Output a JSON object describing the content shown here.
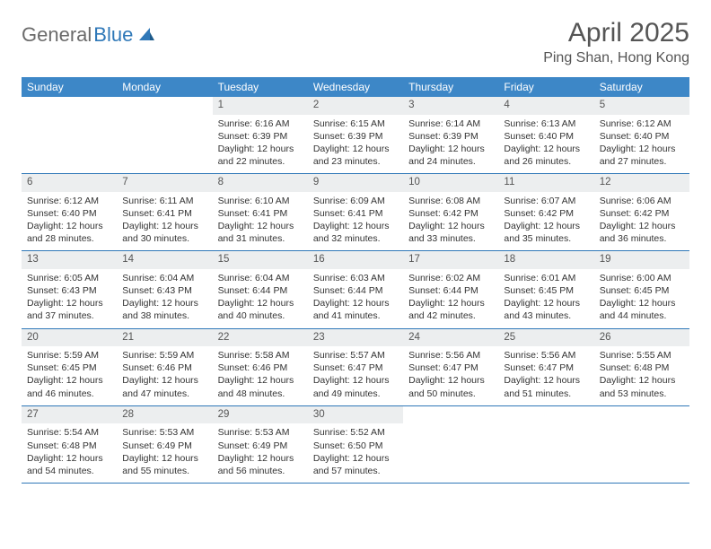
{
  "logo": {
    "part1": "General",
    "part2": "Blue"
  },
  "title": "April 2025",
  "location": "Ping Shan, Hong Kong",
  "colors": {
    "header_bg": "#3d87c7",
    "row_border": "#2f78b8",
    "daynum_bg": "#eceeef",
    "text": "#333333",
    "muted": "#555555",
    "logo_gray": "#6b6b6b",
    "logo_blue": "#2f78b8"
  },
  "day_headers": [
    "Sunday",
    "Monday",
    "Tuesday",
    "Wednesday",
    "Thursday",
    "Friday",
    "Saturday"
  ],
  "weeks": [
    [
      null,
      null,
      {
        "n": "1",
        "sr": "6:16 AM",
        "ss": "6:39 PM",
        "dl": "12 hours and 22 minutes."
      },
      {
        "n": "2",
        "sr": "6:15 AM",
        "ss": "6:39 PM",
        "dl": "12 hours and 23 minutes."
      },
      {
        "n": "3",
        "sr": "6:14 AM",
        "ss": "6:39 PM",
        "dl": "12 hours and 24 minutes."
      },
      {
        "n": "4",
        "sr": "6:13 AM",
        "ss": "6:40 PM",
        "dl": "12 hours and 26 minutes."
      },
      {
        "n": "5",
        "sr": "6:12 AM",
        "ss": "6:40 PM",
        "dl": "12 hours and 27 minutes."
      }
    ],
    [
      {
        "n": "6",
        "sr": "6:12 AM",
        "ss": "6:40 PM",
        "dl": "12 hours and 28 minutes."
      },
      {
        "n": "7",
        "sr": "6:11 AM",
        "ss": "6:41 PM",
        "dl": "12 hours and 30 minutes."
      },
      {
        "n": "8",
        "sr": "6:10 AM",
        "ss": "6:41 PM",
        "dl": "12 hours and 31 minutes."
      },
      {
        "n": "9",
        "sr": "6:09 AM",
        "ss": "6:41 PM",
        "dl": "12 hours and 32 minutes."
      },
      {
        "n": "10",
        "sr": "6:08 AM",
        "ss": "6:42 PM",
        "dl": "12 hours and 33 minutes."
      },
      {
        "n": "11",
        "sr": "6:07 AM",
        "ss": "6:42 PM",
        "dl": "12 hours and 35 minutes."
      },
      {
        "n": "12",
        "sr": "6:06 AM",
        "ss": "6:42 PM",
        "dl": "12 hours and 36 minutes."
      }
    ],
    [
      {
        "n": "13",
        "sr": "6:05 AM",
        "ss": "6:43 PM",
        "dl": "12 hours and 37 minutes."
      },
      {
        "n": "14",
        "sr": "6:04 AM",
        "ss": "6:43 PM",
        "dl": "12 hours and 38 minutes."
      },
      {
        "n": "15",
        "sr": "6:04 AM",
        "ss": "6:44 PM",
        "dl": "12 hours and 40 minutes."
      },
      {
        "n": "16",
        "sr": "6:03 AM",
        "ss": "6:44 PM",
        "dl": "12 hours and 41 minutes."
      },
      {
        "n": "17",
        "sr": "6:02 AM",
        "ss": "6:44 PM",
        "dl": "12 hours and 42 minutes."
      },
      {
        "n": "18",
        "sr": "6:01 AM",
        "ss": "6:45 PM",
        "dl": "12 hours and 43 minutes."
      },
      {
        "n": "19",
        "sr": "6:00 AM",
        "ss": "6:45 PM",
        "dl": "12 hours and 44 minutes."
      }
    ],
    [
      {
        "n": "20",
        "sr": "5:59 AM",
        "ss": "6:45 PM",
        "dl": "12 hours and 46 minutes."
      },
      {
        "n": "21",
        "sr": "5:59 AM",
        "ss": "6:46 PM",
        "dl": "12 hours and 47 minutes."
      },
      {
        "n": "22",
        "sr": "5:58 AM",
        "ss": "6:46 PM",
        "dl": "12 hours and 48 minutes."
      },
      {
        "n": "23",
        "sr": "5:57 AM",
        "ss": "6:47 PM",
        "dl": "12 hours and 49 minutes."
      },
      {
        "n": "24",
        "sr": "5:56 AM",
        "ss": "6:47 PM",
        "dl": "12 hours and 50 minutes."
      },
      {
        "n": "25",
        "sr": "5:56 AM",
        "ss": "6:47 PM",
        "dl": "12 hours and 51 minutes."
      },
      {
        "n": "26",
        "sr": "5:55 AM",
        "ss": "6:48 PM",
        "dl": "12 hours and 53 minutes."
      }
    ],
    [
      {
        "n": "27",
        "sr": "5:54 AM",
        "ss": "6:48 PM",
        "dl": "12 hours and 54 minutes."
      },
      {
        "n": "28",
        "sr": "5:53 AM",
        "ss": "6:49 PM",
        "dl": "12 hours and 55 minutes."
      },
      {
        "n": "29",
        "sr": "5:53 AM",
        "ss": "6:49 PM",
        "dl": "12 hours and 56 minutes."
      },
      {
        "n": "30",
        "sr": "5:52 AM",
        "ss": "6:50 PM",
        "dl": "12 hours and 57 minutes."
      },
      null,
      null,
      null
    ]
  ],
  "labels": {
    "sunrise": "Sunrise:",
    "sunset": "Sunset:",
    "daylight": "Daylight:"
  }
}
